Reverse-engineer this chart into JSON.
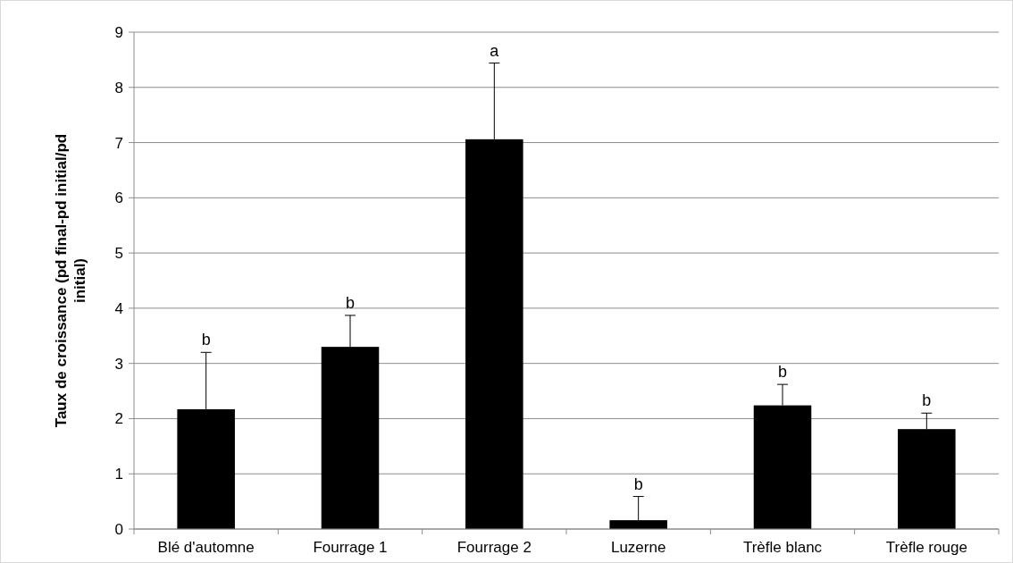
{
  "chart_data": {
    "type": "bar",
    "ylabel": "Taux de croissance (pd final-pd initial/pd initial)",
    "categories": [
      "Blé d'automne",
      "Fourrage 1",
      "Fourrage 2",
      "Luzerne",
      "Trèfle blanc",
      "Trèfle rouge"
    ],
    "values": [
      2.17,
      3.3,
      7.06,
      0.16,
      2.24,
      1.81
    ],
    "errors": [
      [
        2.17,
        3.2
      ],
      [
        3.3,
        3.87
      ],
      [
        7.06,
        8.44
      ],
      [
        0.16,
        0.59
      ],
      [
        2.24,
        2.62
      ],
      [
        1.81,
        2.1
      ]
    ],
    "color": "#000000",
    "ylim": [
      0,
      9
    ],
    "yticks": [
      0,
      1,
      2,
      3,
      4,
      5,
      6,
      7,
      8,
      9
    ],
    "grid": "y",
    "annotations": [
      {
        "text": "b",
        "x": "Blé d'automne",
        "y": 3.2
      },
      {
        "text": "b",
        "x": "Fourrage 1",
        "y": 3.87
      },
      {
        "text": "a",
        "x": "Fourrage 2",
        "y": 8.44
      },
      {
        "text": "b",
        "x": "Luzerne",
        "y": 0.59
      },
      {
        "text": "b",
        "x": "Trèfle blanc",
        "y": 2.62
      },
      {
        "text": "b",
        "x": "Trèfle rouge",
        "y": 2.1
      }
    ]
  }
}
